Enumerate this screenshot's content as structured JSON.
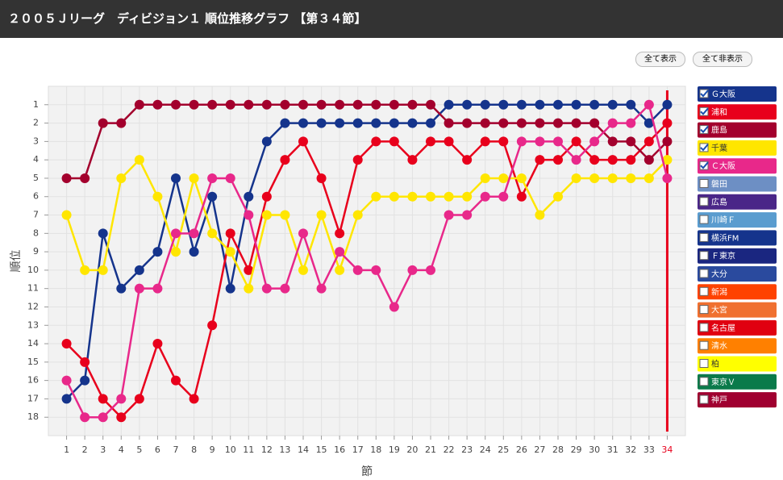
{
  "header": {
    "title": "２００５Ｊリーグ　ディビジョン１ 順位推移グラフ 【第３４節】"
  },
  "buttons": [
    "全て表示",
    "全て非表示"
  ],
  "chart_data": {
    "type": "line",
    "xlabel": "節",
    "ylabel": "順位",
    "x": [
      1,
      2,
      3,
      4,
      5,
      6,
      7,
      8,
      9,
      10,
      11,
      12,
      13,
      14,
      15,
      16,
      17,
      18,
      19,
      20,
      21,
      22,
      23,
      24,
      25,
      26,
      27,
      28,
      29,
      30,
      31,
      32,
      33,
      34
    ],
    "xlim": [
      0,
      35
    ],
    "xticks": [
      1,
      2,
      3,
      4,
      5,
      6,
      7,
      8,
      9,
      10,
      11,
      12,
      13,
      14,
      15,
      16,
      17,
      18,
      19,
      20,
      21,
      22,
      23,
      24,
      25,
      26,
      27,
      28,
      29,
      30,
      31,
      32,
      33,
      34
    ],
    "ylim": [
      0,
      19
    ],
    "yticks": [
      1,
      2,
      3,
      4,
      5,
      6,
      7,
      8,
      9,
      10,
      11,
      12,
      13,
      14,
      15,
      16,
      17,
      18
    ],
    "y_inverted": true,
    "grid": true,
    "current_x": 34,
    "current_color": "#e8001c",
    "series": [
      {
        "name": "Ｇ大阪",
        "color": "#15348c",
        "checked": true,
        "values": [
          17,
          16,
          8,
          11,
          10,
          9,
          5,
          9,
          6,
          11,
          6,
          3,
          2,
          2,
          2,
          2,
          2,
          2,
          2,
          2,
          2,
          1,
          1,
          1,
          1,
          1,
          1,
          1,
          1,
          1,
          1,
          1,
          2,
          1
        ]
      },
      {
        "name": "浦和",
        "color": "#e8001c",
        "checked": true,
        "values": [
          14,
          15,
          17,
          18,
          17,
          14,
          16,
          17,
          13,
          8,
          10,
          6,
          4,
          3,
          5,
          8,
          4,
          3,
          3,
          4,
          3,
          3,
          4,
          3,
          3,
          6,
          4,
          4,
          3,
          4,
          4,
          4,
          3,
          2
        ]
      },
      {
        "name": "鹿島",
        "color": "#a3002d",
        "checked": true,
        "values": [
          5,
          5,
          2,
          2,
          1,
          1,
          1,
          1,
          1,
          1,
          1,
          1,
          1,
          1,
          1,
          1,
          1,
          1,
          1,
          1,
          1,
          2,
          2,
          2,
          2,
          2,
          2,
          2,
          2,
          2,
          3,
          3,
          4,
          3
        ]
      },
      {
        "name": "千葉",
        "color": "#ffe600",
        "checked": true,
        "values": [
          7,
          10,
          10,
          5,
          4,
          6,
          9,
          5,
          8,
          9,
          11,
          7,
          7,
          10,
          7,
          10,
          7,
          6,
          6,
          6,
          6,
          6,
          6,
          5,
          5,
          5,
          7,
          6,
          5,
          5,
          5,
          5,
          5,
          4
        ]
      },
      {
        "name": "Ｃ大阪",
        "color": "#e8288a",
        "checked": true,
        "values": [
          16,
          18,
          18,
          17,
          11,
          11,
          8,
          8,
          5,
          5,
          7,
          11,
          11,
          8,
          11,
          9,
          10,
          10,
          12,
          10,
          10,
          7,
          7,
          6,
          6,
          3,
          3,
          3,
          4,
          3,
          2,
          2,
          1,
          5
        ]
      }
    ],
    "other_teams": [
      {
        "name": "磐田",
        "color": "#6d8fc4",
        "checked": false
      },
      {
        "name": "広島",
        "color": "#4a2688",
        "checked": false
      },
      {
        "name": "川崎Ｆ",
        "color": "#5a9ccf",
        "checked": false
      },
      {
        "name": "横浜FM",
        "color": "#15348c",
        "checked": false
      },
      {
        "name": "Ｆ東京",
        "color": "#1a2680",
        "checked": false
      },
      {
        "name": "大分",
        "color": "#2a4a9e",
        "checked": false
      },
      {
        "name": "新潟",
        "color": "#ff4200",
        "checked": false
      },
      {
        "name": "大宮",
        "color": "#f07030",
        "checked": false
      },
      {
        "name": "名古屋",
        "color": "#e00010",
        "checked": false
      },
      {
        "name": "清水",
        "color": "#ff8000",
        "checked": false
      },
      {
        "name": "柏",
        "color": "#ffff00",
        "checked": false
      },
      {
        "name": "東京Ｖ",
        "color": "#0a7a4a",
        "checked": false
      },
      {
        "name": "神戸",
        "color": "#a00030",
        "checked": false
      }
    ]
  }
}
